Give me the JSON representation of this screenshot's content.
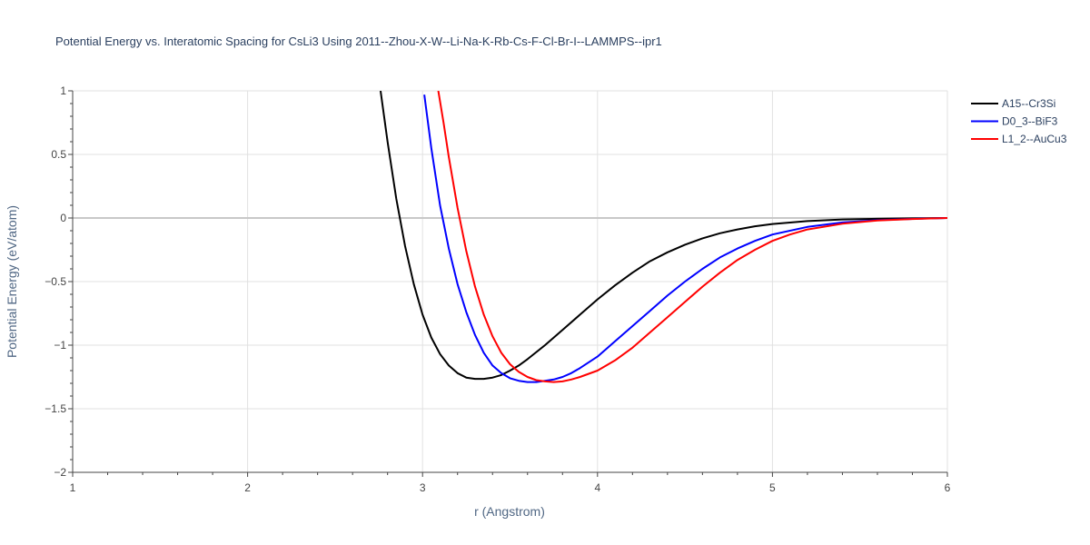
{
  "chart_data": {
    "type": "line",
    "title": "Potential Energy vs. Interatomic Spacing for CsLi3 Using 2011--Zhou-X-W--Li-Na-K-Rb-Cs-F-Cl-Br-I--LAMMPS--ipr1",
    "xlabel": "r (Angstrom)",
    "ylabel": "Potential Energy (eV/atom)",
    "xlim": [
      1,
      6
    ],
    "ylim": [
      -2,
      1
    ],
    "x_ticks": [
      "1",
      "2",
      "3",
      "4",
      "5",
      "6"
    ],
    "y_ticks": [
      "1",
      "0.5",
      "0",
      "−0.5",
      "−1",
      "−1.5",
      "−2"
    ],
    "grid": true,
    "legend_position": "top-right",
    "series": [
      {
        "name": "A15--Cr3Si",
        "color": "#000000",
        "x": [
          2.76,
          2.8,
          2.85,
          2.9,
          2.95,
          3.0,
          3.05,
          3.1,
          3.15,
          3.2,
          3.25,
          3.3,
          3.35,
          3.4,
          3.45,
          3.5,
          3.55,
          3.6,
          3.7,
          3.8,
          3.9,
          4.0,
          4.1,
          4.2,
          4.3,
          4.4,
          4.5,
          4.6,
          4.7,
          4.8,
          4.9,
          5.0,
          5.2,
          5.4,
          5.6,
          5.8,
          6.0
        ],
        "y": [
          1.0,
          0.6,
          0.15,
          -0.22,
          -0.52,
          -0.76,
          -0.94,
          -1.07,
          -1.16,
          -1.22,
          -1.255,
          -1.265,
          -1.265,
          -1.255,
          -1.235,
          -1.2,
          -1.16,
          -1.11,
          -1.0,
          -0.88,
          -0.76,
          -0.64,
          -0.53,
          -0.43,
          -0.34,
          -0.27,
          -0.21,
          -0.16,
          -0.12,
          -0.09,
          -0.065,
          -0.047,
          -0.024,
          -0.012,
          -0.006,
          -0.003,
          0.0
        ]
      },
      {
        "name": "D0_3--BiF3",
        "color": "#0000ff",
        "x": [
          3.01,
          3.05,
          3.1,
          3.15,
          3.2,
          3.25,
          3.3,
          3.35,
          3.4,
          3.45,
          3.5,
          3.55,
          3.6,
          3.65,
          3.7,
          3.75,
          3.8,
          3.85,
          3.9,
          4.0,
          4.1,
          4.2,
          4.3,
          4.4,
          4.5,
          4.6,
          4.7,
          4.8,
          4.9,
          5.0,
          5.2,
          5.4,
          5.6,
          5.8,
          6.0
        ],
        "y": [
          0.97,
          0.55,
          0.1,
          -0.24,
          -0.52,
          -0.74,
          -0.92,
          -1.06,
          -1.16,
          -1.22,
          -1.26,
          -1.28,
          -1.29,
          -1.29,
          -1.28,
          -1.27,
          -1.25,
          -1.22,
          -1.18,
          -1.09,
          -0.97,
          -0.85,
          -0.73,
          -0.61,
          -0.5,
          -0.4,
          -0.31,
          -0.24,
          -0.18,
          -0.13,
          -0.07,
          -0.035,
          -0.017,
          -0.007,
          0.0
        ]
      },
      {
        "name": "L1_2--AuCu3",
        "color": "#ff0000",
        "x": [
          3.09,
          3.12,
          3.15,
          3.2,
          3.25,
          3.3,
          3.35,
          3.4,
          3.45,
          3.5,
          3.55,
          3.6,
          3.65,
          3.7,
          3.75,
          3.8,
          3.85,
          3.9,
          4.0,
          4.1,
          4.2,
          4.3,
          4.4,
          4.5,
          4.6,
          4.7,
          4.8,
          4.9,
          5.0,
          5.1,
          5.2,
          5.4,
          5.6,
          5.8,
          6.0
        ],
        "y": [
          1.0,
          0.75,
          0.48,
          0.08,
          -0.26,
          -0.54,
          -0.76,
          -0.93,
          -1.06,
          -1.15,
          -1.21,
          -1.25,
          -1.275,
          -1.285,
          -1.29,
          -1.285,
          -1.27,
          -1.25,
          -1.2,
          -1.12,
          -1.02,
          -0.9,
          -0.78,
          -0.66,
          -0.54,
          -0.43,
          -0.33,
          -0.25,
          -0.18,
          -0.13,
          -0.09,
          -0.045,
          -0.02,
          -0.008,
          0.0
        ]
      }
    ]
  }
}
